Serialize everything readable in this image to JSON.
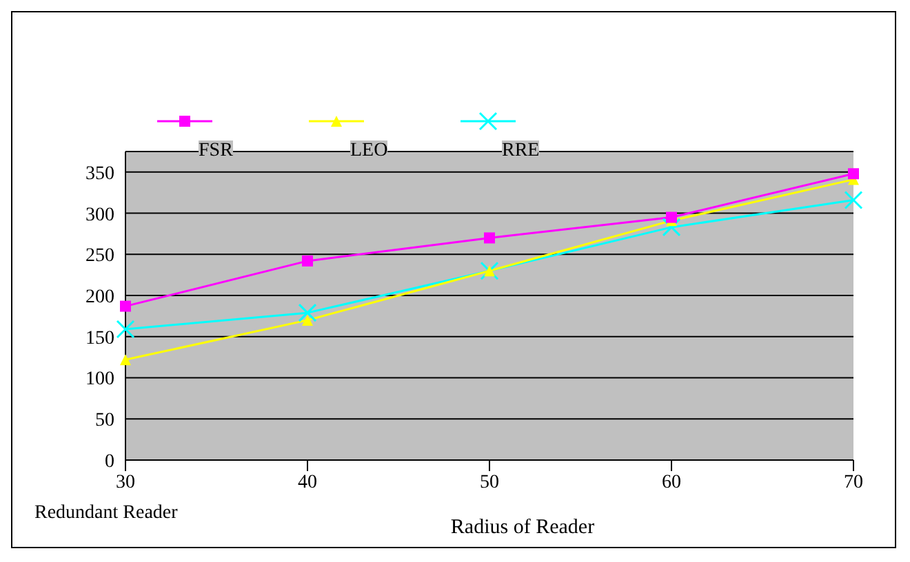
{
  "chart_data": {
    "type": "line",
    "xlabel": "Radius of Reader",
    "categories": [
      "30",
      "40",
      "50",
      "60",
      "70"
    ],
    "series": [
      {
        "name": "FSR",
        "color": "#ff00ff",
        "marker": "square",
        "values": [
          187,
          242,
          270,
          295,
          348
        ]
      },
      {
        "name": "LEO",
        "color": "#ffff00",
        "marker": "triangle",
        "values": [
          122,
          170,
          230,
          291,
          341
        ]
      },
      {
        "name": "RRE",
        "color": "#00ffff",
        "marker": "cross",
        "values": [
          159,
          179,
          230,
          283,
          316
        ]
      }
    ],
    "ylim": [
      0,
      375
    ],
    "yticks": [
      0,
      50,
      100,
      150,
      200,
      250,
      300,
      350
    ],
    "grid": "y",
    "legend": "top left",
    "annotations": [
      "Redundant Reader"
    ]
  }
}
